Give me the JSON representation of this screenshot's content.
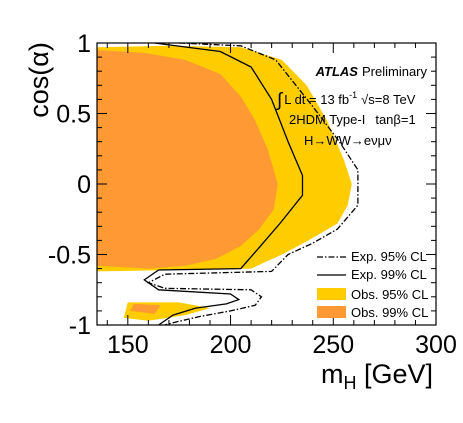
{
  "chart_data": {
    "type": "area",
    "xlabel": "m",
    "xlabel_sub": "H",
    "xlabel_unit": " [GeV]",
    "ylabel": "cos(α)",
    "xlim": [
      135,
      300
    ],
    "ylim": [
      -1,
      1
    ],
    "x_ticks": [
      150,
      200,
      250,
      300
    ],
    "y_ticks": [
      1,
      0.5,
      0,
      -0.5,
      -1
    ],
    "x_tick_labels": [
      "150",
      "200",
      "250",
      "300"
    ],
    "y_tick_labels": [
      "1",
      "0.5",
      "0",
      "-0.5",
      "-1"
    ],
    "grid": false,
    "legend_position": "bottom-right",
    "annotations": {
      "experiment": "ATLAS",
      "status": "Preliminary",
      "lumi_integral": "∫",
      "lumi_text": "L dt = 13 fb",
      "lumi_exp": "-1",
      "sqrt_s": "√s=8 TeV",
      "model": "2HDM Type-I",
      "tanbeta": "tanβ=1",
      "channel": "H→WW→eνμν"
    },
    "series": [
      {
        "name": "Obs. 95% CL",
        "kind": "filled",
        "color": "#ffcc00",
        "regions": [
          [
            [
              135,
              0.97
            ],
            [
              170,
              0.98
            ],
            [
              205,
              0.97
            ],
            [
              225,
              0.88
            ],
            [
              237,
              0.7
            ],
            [
              247,
              0.45
            ],
            [
              255,
              0.18
            ],
            [
              259,
              0
            ],
            [
              257,
              -0.15
            ],
            [
              252,
              -0.28
            ],
            [
              238,
              -0.4
            ],
            [
              225,
              -0.5
            ],
            [
              210,
              -0.6
            ],
            [
              135,
              -0.62
            ]
          ],
          [
            [
              150,
              -0.84
            ],
            [
              175,
              -0.84
            ],
            [
              190,
              -0.88
            ],
            [
              178,
              -0.93
            ],
            [
              160,
              -0.97
            ],
            [
              148,
              -0.95
            ]
          ]
        ]
      },
      {
        "name": "Obs. 99% CL",
        "kind": "filled",
        "color": "#ff9933",
        "regions": [
          [
            [
              135,
              0.95
            ],
            [
              158,
              0.93
            ],
            [
              178,
              0.88
            ],
            [
              195,
              0.78
            ],
            [
              205,
              0.62
            ],
            [
              212,
              0.45
            ],
            [
              218,
              0.25
            ],
            [
              223,
              0
            ],
            [
              221,
              -0.18
            ],
            [
              214,
              -0.32
            ],
            [
              205,
              -0.44
            ],
            [
              193,
              -0.53
            ],
            [
              178,
              -0.58
            ],
            [
              160,
              -0.6
            ],
            [
              135,
              -0.58
            ]
          ],
          [
            [
              153,
              -0.85
            ],
            [
              166,
              -0.86
            ],
            [
              163,
              -0.92
            ],
            [
              151,
              -0.9
            ]
          ]
        ]
      },
      {
        "name": "Exp. 99% CL",
        "kind": "line",
        "style": "solid",
        "color": "#000000",
        "points": [
          [
            163,
            1
          ],
          [
            195,
            0.94
          ],
          [
            210,
            0.83
          ],
          [
            220,
            0.6
          ],
          [
            228,
            0.3
          ],
          [
            235,
            0.06
          ],
          [
            235,
            -0.08
          ],
          [
            224,
            -0.28
          ],
          [
            214,
            -0.45
          ],
          [
            205,
            -0.6
          ],
          [
            165,
            -0.61
          ],
          [
            158,
            -0.68
          ],
          [
            165,
            -0.75
          ],
          [
            200,
            -0.78
          ],
          [
            204,
            -0.82
          ],
          [
            198,
            -0.85
          ],
          [
            183,
            -0.88
          ],
          [
            172,
            -0.93
          ],
          [
            165,
            -1
          ]
        ]
      },
      {
        "name": "Exp. 95% CL",
        "kind": "line",
        "style": "dashdot",
        "color": "#000000",
        "points": [
          [
            175,
            1
          ],
          [
            205,
            0.98
          ],
          [
            222,
            0.88
          ],
          [
            240,
            0.55
          ],
          [
            253,
            0.3
          ],
          [
            262,
            0.1
          ],
          [
            262,
            -0.15
          ],
          [
            252,
            -0.32
          ],
          [
            240,
            -0.42
          ],
          [
            228,
            -0.5
          ],
          [
            220,
            -0.62
          ],
          [
            168,
            -0.64
          ],
          [
            160,
            -0.7
          ],
          [
            168,
            -0.74
          ],
          [
            210,
            -0.75
          ],
          [
            215,
            -0.8
          ],
          [
            212,
            -0.86
          ],
          [
            200,
            -0.9
          ],
          [
            185,
            -0.94
          ],
          [
            173,
            -0.98
          ],
          [
            168,
            -1
          ]
        ]
      }
    ],
    "legend": [
      {
        "label": "Exp. 95% CL",
        "symbol": "dashdot-line"
      },
      {
        "label": "Exp. 99% CL",
        "symbol": "solid-line"
      },
      {
        "label": "Obs. 95% CL",
        "symbol": "box",
        "color": "#ffcc00"
      },
      {
        "label": "Obs. 99% CL",
        "symbol": "box",
        "color": "#ff9933"
      }
    ]
  }
}
